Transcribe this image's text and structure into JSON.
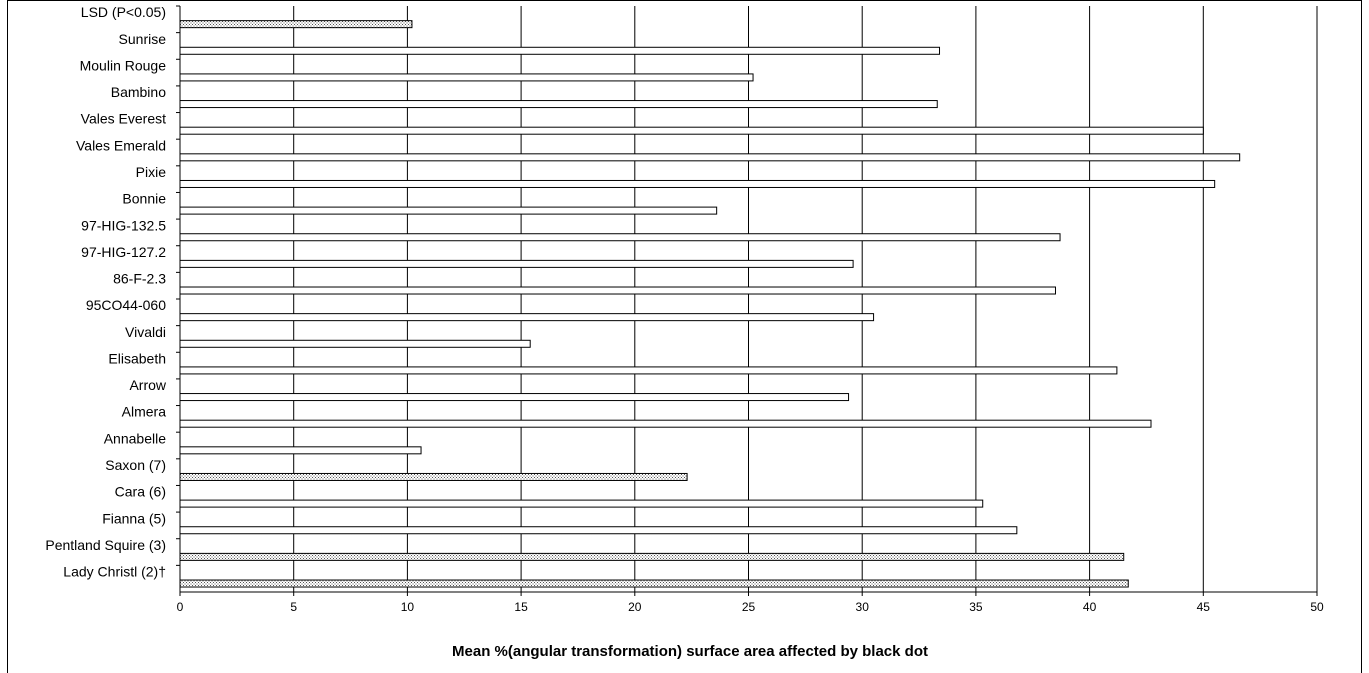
{
  "chart_data": {
    "type": "bar",
    "orientation": "horizontal",
    "title": "",
    "xlabel": "Mean %(angular transformation) surface area affected by black dot",
    "ylabel": "",
    "xlim": [
      0,
      50
    ],
    "xticks": [
      "0",
      "5",
      "10",
      "15",
      "20",
      "25",
      "30",
      "35",
      "40",
      "45",
      "50"
    ],
    "grid": "vertical",
    "legend": "none",
    "categories": [
      "LSD (P<0.05)",
      "Sunrise",
      "Moulin Rouge",
      "Bambino",
      "Vales Everest",
      "Vales Emerald",
      "Pixie",
      "Bonnie",
      "97-HIG-132.5",
      "97-HIG-127.2",
      "86-F-2.3",
      "95CO44-060",
      "Vivaldi",
      "Elisabeth",
      "Arrow",
      "Almera",
      "Annabelle",
      "Saxon (7)",
      "Cara (6)",
      "Fianna (5)",
      "Pentland Squire (3)",
      "Lady Christl (2)†"
    ],
    "values": [
      10.2,
      33.4,
      25.2,
      33.3,
      45.0,
      46.6,
      45.5,
      23.6,
      38.7,
      29.6,
      38.5,
      30.5,
      15.4,
      41.2,
      29.4,
      42.7,
      10.6,
      22.3,
      35.3,
      36.8,
      41.5,
      41.7
    ],
    "patterned": [
      true,
      false,
      false,
      false,
      false,
      false,
      false,
      false,
      false,
      false,
      false,
      false,
      false,
      false,
      false,
      false,
      false,
      true,
      false,
      false,
      true,
      true
    ],
    "colors": {
      "bar_fill": "#ffffff",
      "bar_pattern": "#7a7a7a",
      "grid": "#000000",
      "outline": "#000000"
    }
  }
}
